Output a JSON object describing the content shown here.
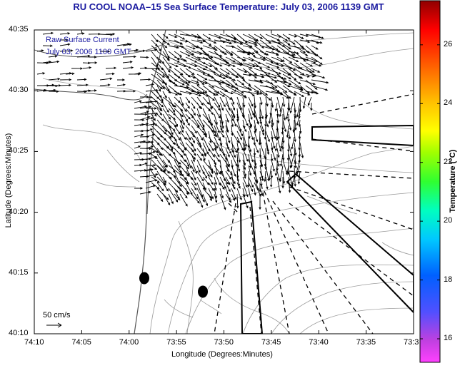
{
  "title": "RU COOL  NOAA–15  Sea Surface Temperature:  July 03, 2006 1139 GMT",
  "overlay": {
    "line1": "Raw Surface Current",
    "line2": "July 03, 2006 1100 GMT"
  },
  "axes": {
    "xlabel": "Longitude (Degrees:Minutes)",
    "ylabel": "Latitude (Degrees:Minutes)",
    "x_ticks": [
      "74:10",
      "74:05",
      "74:00",
      "73:55",
      "73:50",
      "73:45",
      "73:40",
      "73:35",
      "73:3"
    ],
    "y_ticks": [
      "40:35",
      "40:30",
      "40:25",
      "40:20",
      "40:15",
      "40:10"
    ]
  },
  "scale_arrow": {
    "label": "50 cm/s"
  },
  "colorbar": {
    "label": "Temperature (°C)",
    "ticks": [
      "26",
      "24",
      "22",
      "20",
      "18",
      "16"
    ],
    "range": [
      15.2,
      27.5
    ]
  },
  "colors": {
    "title": "#1a1aa0",
    "vectors": "#000000",
    "contours": "#9a9a9a",
    "coastline": "#555555"
  }
}
